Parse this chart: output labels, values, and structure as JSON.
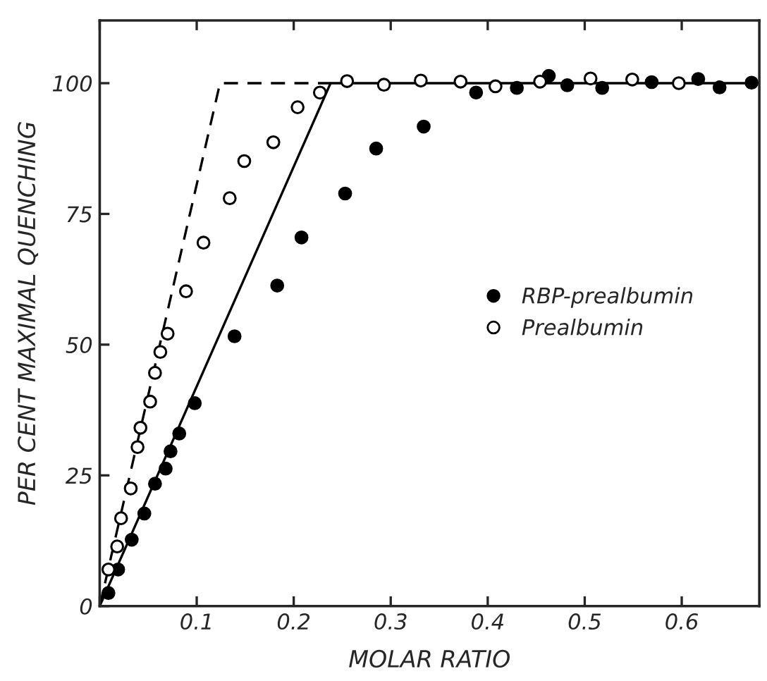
{
  "chart_data": {
    "type": "scatter",
    "xlabel": "MOLAR RATIO",
    "ylabel": "PER CENT MAXIMAL QUENCHING",
    "xlim": [
      0,
      0.68
    ],
    "ylim": [
      0,
      112
    ],
    "xticks": [
      {
        "value": 0,
        "label": null
      },
      0.1,
      0.2,
      0.3,
      0.4,
      0.5,
      0.6
    ],
    "yticks": [
      0,
      25,
      50,
      75,
      100
    ],
    "grid": false,
    "legend": "right",
    "series": [
      {
        "name": "RBP-prealbumin",
        "color": "#000000",
        "marker": "circle",
        "x": [
          0.009,
          0.019,
          0.033,
          0.046,
          0.057,
          0.068,
          0.073,
          0.082,
          0.098,
          0.139,
          0.183,
          0.208,
          0.253,
          0.285,
          0.334,
          0.388,
          0.43,
          0.463,
          0.482,
          0.518,
          0.569,
          0.617,
          0.639,
          0.672
        ],
        "values": [
          2.5,
          7,
          12.7,
          17.7,
          23.4,
          26.3,
          29.6,
          33,
          38.8,
          51.6,
          61.3,
          70.5,
          78.9,
          87.5,
          91.7,
          98.2,
          99.1,
          101.4,
          99.6,
          99.1,
          100.2,
          100.8,
          99.2,
          100.1
        ]
      },
      {
        "name": "Prealbumin",
        "color": "#ffffff",
        "marker": "circle",
        "x": [
          0.009,
          0.018,
          0.022,
          0.032,
          0.039,
          0.042,
          0.052,
          0.057,
          0.0625,
          0.07,
          0.089,
          0.107,
          0.134,
          0.149,
          0.179,
          0.204,
          0.227,
          0.255,
          0.293,
          0.331,
          0.372,
          0.408,
          0.454,
          0.506,
          0.549,
          0.597
        ],
        "values": [
          7,
          11.4,
          16.8,
          22.5,
          30.4,
          34.1,
          39.1,
          44.6,
          48.6,
          52.1,
          60.2,
          69.5,
          78,
          85.1,
          88.7,
          95.4,
          98.2,
          100.4,
          99.7,
          100.5,
          100.3,
          99.4,
          100.3,
          100.9,
          100.7,
          100
        ]
      },
      {
        "type": "line",
        "color": "#000000",
        "line_style": "dashed",
        "marker": "none",
        "x": [
          0,
          0.124,
          0.238
        ],
        "values": [
          0,
          100,
          100
        ]
      },
      {
        "type": "line",
        "color": "#000000",
        "line_style": "solid",
        "marker": "none",
        "x": [
          0,
          0.238,
          0.68
        ],
        "values": [
          0,
          100,
          100
        ]
      }
    ]
  }
}
